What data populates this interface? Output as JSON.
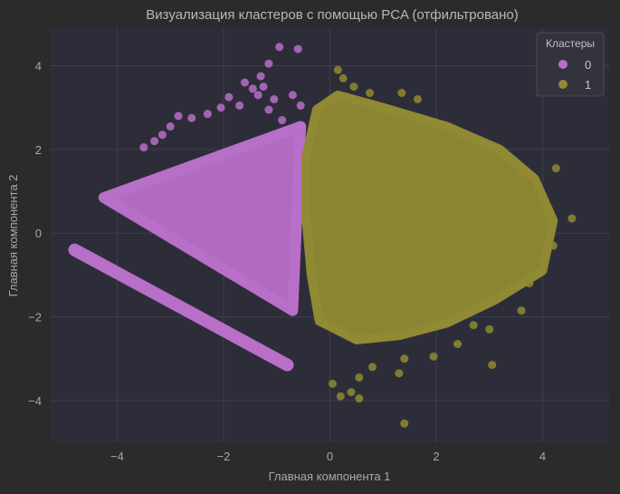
{
  "chart_data": {
    "type": "scatter",
    "title": "Визуализация кластеров с помощью PCA (отфильтровано)",
    "xlabel": "Главная компонента 1",
    "ylabel": "Главная компонента 2",
    "xlim": [
      -5.25,
      5.25
    ],
    "ylim": [
      -5.0,
      4.9
    ],
    "x_ticks": [
      -4,
      -2,
      0,
      2,
      4
    ],
    "y_ticks": [
      -4,
      -2,
      0,
      2,
      4
    ],
    "x_tick_labels": [
      "−4",
      "−2",
      "0",
      "2",
      "4"
    ],
    "y_tick_labels": [
      "−4",
      "−2",
      "0",
      "2",
      "4"
    ],
    "grid": true,
    "legend": {
      "title": "Кластеры",
      "placement": "top-right"
    },
    "colors": {
      "figure_bg": "#2b2b2b",
      "axes_bg": "#2d2d3a",
      "grid": "#3f3f4c",
      "cluster_0": "#b76fc8",
      "cluster_1": "#8f8a33"
    },
    "series": [
      {
        "name": "0",
        "color": "#b76fc8",
        "regions": {
          "triangle": [
            [
              -4.25,
              0.85
            ],
            [
              -0.55,
              2.55
            ],
            [
              -0.7,
              -1.85
            ]
          ],
          "band": [
            [
              -4.8,
              -0.4
            ],
            [
              -0.8,
              -3.15
            ]
          ]
        },
        "points": [
          [
            -0.95,
            4.45
          ],
          [
            -0.6,
            4.4
          ],
          [
            -1.15,
            4.05
          ],
          [
            -1.3,
            3.75
          ],
          [
            -1.25,
            3.5
          ],
          [
            -1.45,
            3.45
          ],
          [
            -1.6,
            3.6
          ],
          [
            -1.35,
            3.3
          ],
          [
            -1.05,
            3.2
          ],
          [
            -1.9,
            3.25
          ],
          [
            -2.05,
            3.0
          ],
          [
            -2.3,
            2.85
          ],
          [
            -2.6,
            2.75
          ],
          [
            -2.85,
            2.8
          ],
          [
            -3.0,
            2.55
          ],
          [
            -3.15,
            2.35
          ],
          [
            -3.3,
            2.2
          ],
          [
            -3.5,
            2.05
          ],
          [
            -1.7,
            3.05
          ],
          [
            -1.15,
            2.95
          ],
          [
            -0.7,
            3.3
          ],
          [
            -0.55,
            3.05
          ],
          [
            -0.6,
            2.45
          ],
          [
            -0.9,
            2.7
          ]
        ]
      },
      {
        "name": "1",
        "color": "#8f8a33",
        "regions": {
          "blob": [
            [
              -0.25,
              2.95
            ],
            [
              0.15,
              3.3
            ],
            [
              1.0,
              3.0
            ],
            [
              2.2,
              2.55
            ],
            [
              3.2,
              2.0
            ],
            [
              3.85,
              1.3
            ],
            [
              4.2,
              0.3
            ],
            [
              4.0,
              -0.9
            ],
            [
              3.1,
              -1.6
            ],
            [
              2.2,
              -2.15
            ],
            [
              1.3,
              -2.45
            ],
            [
              0.5,
              -2.55
            ],
            [
              -0.2,
              -2.1
            ],
            [
              -0.35,
              -1.0
            ],
            [
              -0.45,
              0.4
            ],
            [
              -0.45,
              1.8
            ]
          ]
        },
        "points": [
          [
            0.15,
            3.9
          ],
          [
            0.25,
            3.7
          ],
          [
            0.45,
            3.5
          ],
          [
            0.75,
            3.35
          ],
          [
            1.35,
            3.35
          ],
          [
            1.65,
            3.2
          ],
          [
            4.25,
            1.55
          ],
          [
            4.55,
            0.35
          ],
          [
            4.2,
            -0.3
          ],
          [
            3.75,
            -1.2
          ],
          [
            3.6,
            -1.85
          ],
          [
            3.0,
            -2.3
          ],
          [
            2.7,
            -2.2
          ],
          [
            2.4,
            -2.65
          ],
          [
            1.95,
            -2.95
          ],
          [
            1.4,
            -3.0
          ],
          [
            0.8,
            -3.2
          ],
          [
            0.55,
            -3.45
          ],
          [
            1.3,
            -3.35
          ],
          [
            0.05,
            -3.6
          ],
          [
            0.2,
            -3.9
          ],
          [
            0.4,
            -3.8
          ],
          [
            0.55,
            -3.95
          ],
          [
            1.4,
            -4.55
          ],
          [
            3.05,
            -3.15
          ]
        ]
      }
    ]
  }
}
